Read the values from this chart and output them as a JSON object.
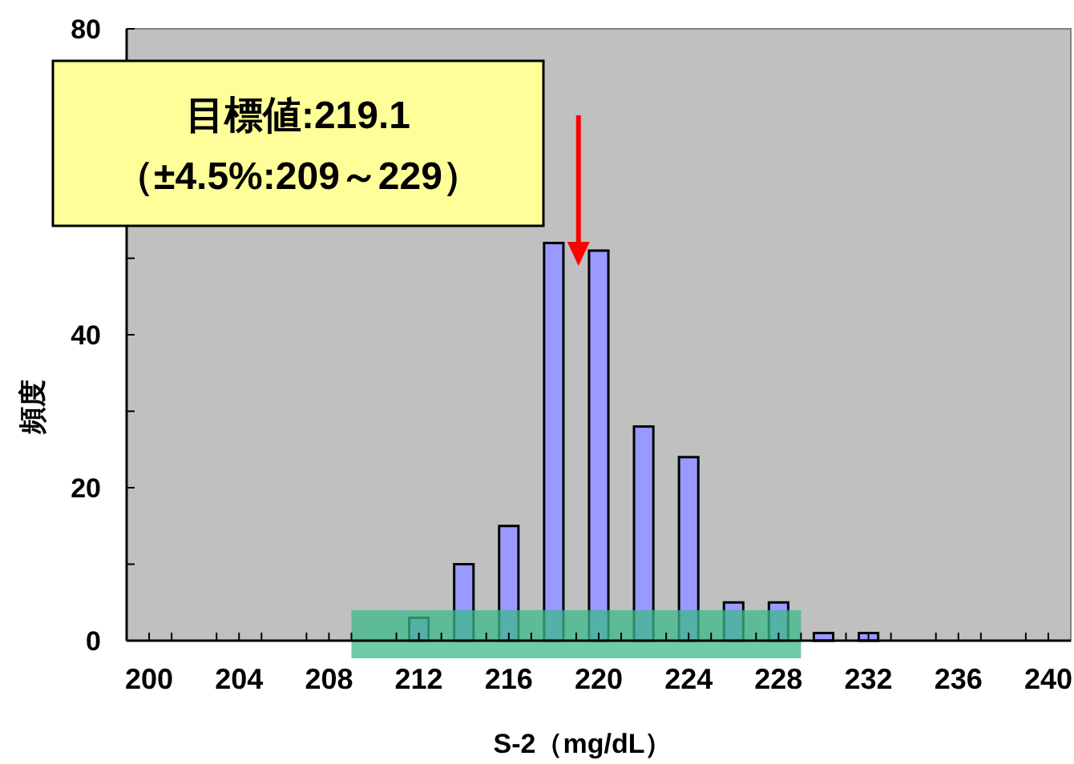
{
  "chart_data": {
    "type": "histogram",
    "xlabel": "S-2（mg/dL）",
    "ylabel": "頻度",
    "bins": [
      211,
      213,
      215,
      217,
      219,
      221,
      223,
      225,
      227,
      229,
      231,
      233
    ],
    "values": [
      3,
      10,
      15,
      52,
      51,
      28,
      24,
      5,
      5,
      1,
      1
    ],
    "color": "#9999ff",
    "xlim": [
      199,
      241
    ],
    "xticks": [
      200,
      {
        "value": 201,
        "label": null
      },
      {
        "value": 203,
        "label": null
      },
      204,
      {
        "value": 205,
        "label": null
      },
      {
        "value": 207,
        "label": null
      },
      208,
      {
        "value": 209,
        "label": null
      },
      {
        "value": 211,
        "label": null
      },
      212,
      {
        "value": 213,
        "label": null
      },
      {
        "value": 215,
        "label": null
      },
      216,
      {
        "value": 217,
        "label": null
      },
      {
        "value": 219,
        "label": null
      },
      220,
      {
        "value": 221,
        "label": null
      },
      {
        "value": 223,
        "label": null
      },
      224,
      {
        "value": 225,
        "label": null
      },
      {
        "value": 227,
        "label": null
      },
      228,
      {
        "value": 229,
        "label": null
      },
      {
        "value": 231,
        "label": null
      },
      232,
      {
        "value": 233,
        "label": null
      },
      {
        "value": 235,
        "label": null
      },
      236,
      {
        "value": 237,
        "label": null
      },
      {
        "value": 239,
        "label": null
      },
      240
    ],
    "ylim": [
      0,
      80
    ],
    "yticks": [
      0,
      {
        "value": 10,
        "label": null
      },
      20,
      {
        "value": 30,
        "label": null
      },
      40,
      {
        "value": 50,
        "label": null
      },
      {
        "value": 60,
        "label": null
      },
      {
        "value": 70,
        "label": null
      },
      80
    ],
    "bands": [
      {
        "axis": "x",
        "from": 209,
        "to": 229,
        "color": "#3cb98a"
      }
    ],
    "ref_lines": [
      {
        "axis": "x",
        "value": 219.1,
        "color": "#ff0000"
      }
    ],
    "annotations": [
      "目標値:219.1\n（±4.5%:209～229）"
    ]
  }
}
